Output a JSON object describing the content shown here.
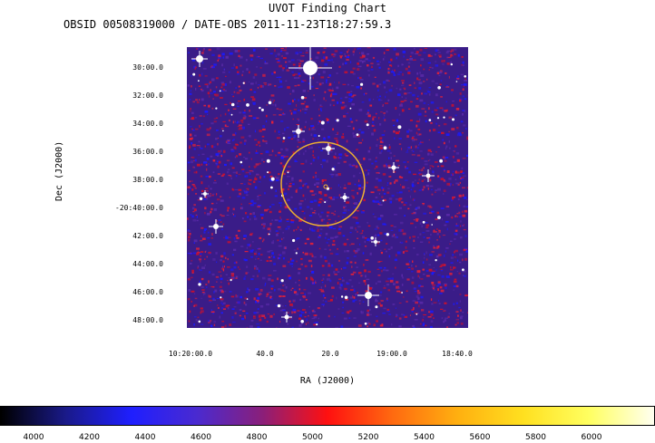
{
  "title": "UVOT Finding Chart",
  "subtitle": "OBSID 00508319000 / DATE-OBS 2011-11-23T18:27:59.3",
  "axes": {
    "y_label": "Dec (J2000)",
    "x_label": "RA (J2000)",
    "y_ticks": [
      "30:00.0",
      "32:00.0",
      "34:00.0",
      "36:00.0",
      "38:00.0",
      "-20:40:00.0",
      "42:00.0",
      "44:00.0",
      "46:00.0",
      "48:00.0"
    ],
    "x_ticks": [
      "10:20:00.0",
      "40.0",
      "20.0",
      "19:00.0",
      "18:40.0"
    ]
  },
  "colorbar": {
    "ticks": [
      "4000",
      "4200",
      "4400",
      "4600",
      "4800",
      "5000",
      "5200",
      "5400",
      "5600",
      "5800",
      "6000"
    ],
    "colors": [
      "#000000",
      "#1a1a8a",
      "#1f1fff",
      "#4a2ad0",
      "#8a1f7a",
      "#ff1010",
      "#ff6a10",
      "#ffb010",
      "#ffe020",
      "#ffff60",
      "#fffff0"
    ]
  },
  "image": {
    "background_color": "#3a1c88",
    "noise_colors": [
      "#c8102e",
      "#1a1aff",
      "#5a2aa8",
      "#e0203a"
    ],
    "marker_color": "#f0b030"
  }
}
